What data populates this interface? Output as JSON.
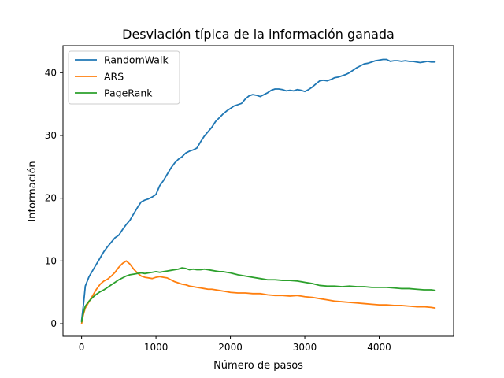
{
  "chart_data": {
    "type": "line",
    "title": "Desviación típica de la información ganada",
    "xlabel": "Número de pasos",
    "ylabel": "Información",
    "xlim": [
      -250,
      5000
    ],
    "ylim": [
      -2,
      44.3
    ],
    "xticks": [
      0,
      1000,
      2000,
      3000,
      4000
    ],
    "yticks": [
      0,
      10,
      20,
      30,
      40
    ],
    "grid": false,
    "legend_position": "top-left",
    "series": [
      {
        "name": "RandomWalk",
        "color": "#1f77b4",
        "points": [
          [
            0,
            0.5
          ],
          [
            25,
            3
          ],
          [
            50,
            6
          ],
          [
            100,
            7.5
          ],
          [
            150,
            8.5
          ],
          [
            200,
            9.5
          ],
          [
            250,
            10.5
          ],
          [
            300,
            11.5
          ],
          [
            350,
            12.3
          ],
          [
            400,
            13
          ],
          [
            450,
            13.7
          ],
          [
            500,
            14.1
          ],
          [
            550,
            15
          ],
          [
            600,
            15.8
          ],
          [
            650,
            16.5
          ],
          [
            700,
            17.5
          ],
          [
            750,
            18.5
          ],
          [
            800,
            19.4
          ],
          [
            850,
            19.7
          ],
          [
            900,
            19.9
          ],
          [
            950,
            20.2
          ],
          [
            1000,
            20.6
          ],
          [
            1050,
            22
          ],
          [
            1100,
            22.8
          ],
          [
            1150,
            23.8
          ],
          [
            1200,
            24.8
          ],
          [
            1250,
            25.6
          ],
          [
            1300,
            26.2
          ],
          [
            1350,
            26.6
          ],
          [
            1400,
            27.2
          ],
          [
            1450,
            27.5
          ],
          [
            1500,
            27.7
          ],
          [
            1550,
            28
          ],
          [
            1600,
            29
          ],
          [
            1650,
            29.9
          ],
          [
            1700,
            30.6
          ],
          [
            1750,
            31.3
          ],
          [
            1800,
            32.2
          ],
          [
            1850,
            32.8
          ],
          [
            1900,
            33.4
          ],
          [
            1950,
            33.9
          ],
          [
            2000,
            34.3
          ],
          [
            2050,
            34.7
          ],
          [
            2100,
            34.9
          ],
          [
            2150,
            35.1
          ],
          [
            2200,
            35.8
          ],
          [
            2250,
            36.3
          ],
          [
            2300,
            36.5
          ],
          [
            2350,
            36.4
          ],
          [
            2400,
            36.2
          ],
          [
            2450,
            36.5
          ],
          [
            2500,
            36.8
          ],
          [
            2550,
            37.2
          ],
          [
            2600,
            37.4
          ],
          [
            2650,
            37.4
          ],
          [
            2700,
            37.3
          ],
          [
            2750,
            37.1
          ],
          [
            2800,
            37.2
          ],
          [
            2850,
            37.1
          ],
          [
            2900,
            37.3
          ],
          [
            2950,
            37.2
          ],
          [
            3000,
            37.0
          ],
          [
            3050,
            37.3
          ],
          [
            3100,
            37.7
          ],
          [
            3150,
            38.2
          ],
          [
            3200,
            38.7
          ],
          [
            3250,
            38.8
          ],
          [
            3300,
            38.7
          ],
          [
            3350,
            38.9
          ],
          [
            3400,
            39.2
          ],
          [
            3450,
            39.3
          ],
          [
            3500,
            39.5
          ],
          [
            3550,
            39.7
          ],
          [
            3600,
            40.0
          ],
          [
            3650,
            40.4
          ],
          [
            3700,
            40.8
          ],
          [
            3750,
            41.1
          ],
          [
            3800,
            41.4
          ],
          [
            3850,
            41.5
          ],
          [
            3900,
            41.7
          ],
          [
            3950,
            41.9
          ],
          [
            4000,
            42.0
          ],
          [
            4050,
            42.1
          ],
          [
            4100,
            42.1
          ],
          [
            4150,
            41.8
          ],
          [
            4200,
            41.9
          ],
          [
            4250,
            41.9
          ],
          [
            4300,
            41.8
          ],
          [
            4350,
            41.9
          ],
          [
            4400,
            41.8
          ],
          [
            4450,
            41.8
          ],
          [
            4500,
            41.7
          ],
          [
            4550,
            41.6
          ],
          [
            4600,
            41.7
          ],
          [
            4650,
            41.8
          ],
          [
            4700,
            41.7
          ],
          [
            4750,
            41.7
          ]
        ]
      },
      {
        "name": "ARS",
        "color": "#ff7f0e",
        "points": [
          [
            0,
            0
          ],
          [
            25,
            1.5
          ],
          [
            50,
            2.5
          ],
          [
            100,
            3.5
          ],
          [
            150,
            4.5
          ],
          [
            200,
            5.5
          ],
          [
            250,
            6.3
          ],
          [
            300,
            6.8
          ],
          [
            350,
            7.1
          ],
          [
            400,
            7.6
          ],
          [
            450,
            8.2
          ],
          [
            500,
            9.0
          ],
          [
            550,
            9.6
          ],
          [
            600,
            10.0
          ],
          [
            650,
            9.5
          ],
          [
            700,
            8.7
          ],
          [
            750,
            8.1
          ],
          [
            800,
            7.6
          ],
          [
            850,
            7.4
          ],
          [
            900,
            7.3
          ],
          [
            950,
            7.2
          ],
          [
            1000,
            7.4
          ],
          [
            1050,
            7.5
          ],
          [
            1100,
            7.4
          ],
          [
            1150,
            7.3
          ],
          [
            1200,
            7.0
          ],
          [
            1250,
            6.7
          ],
          [
            1300,
            6.5
          ],
          [
            1350,
            6.3
          ],
          [
            1400,
            6.2
          ],
          [
            1450,
            6.0
          ],
          [
            1500,
            5.9
          ],
          [
            1550,
            5.8
          ],
          [
            1600,
            5.7
          ],
          [
            1650,
            5.6
          ],
          [
            1700,
            5.5
          ],
          [
            1750,
            5.5
          ],
          [
            1800,
            5.4
          ],
          [
            1850,
            5.3
          ],
          [
            1900,
            5.2
          ],
          [
            1950,
            5.1
          ],
          [
            2000,
            5.0
          ],
          [
            2100,
            4.9
          ],
          [
            2200,
            4.9
          ],
          [
            2300,
            4.8
          ],
          [
            2400,
            4.8
          ],
          [
            2500,
            4.6
          ],
          [
            2600,
            4.5
          ],
          [
            2700,
            4.5
          ],
          [
            2800,
            4.4
          ],
          [
            2900,
            4.5
          ],
          [
            3000,
            4.3
          ],
          [
            3100,
            4.2
          ],
          [
            3200,
            4.0
          ],
          [
            3300,
            3.8
          ],
          [
            3400,
            3.6
          ],
          [
            3500,
            3.5
          ],
          [
            3600,
            3.4
          ],
          [
            3700,
            3.3
          ],
          [
            3800,
            3.2
          ],
          [
            3900,
            3.1
          ],
          [
            4000,
            3.0
          ],
          [
            4100,
            3.0
          ],
          [
            4200,
            2.9
          ],
          [
            4300,
            2.9
          ],
          [
            4400,
            2.8
          ],
          [
            4500,
            2.7
          ],
          [
            4600,
            2.7
          ],
          [
            4700,
            2.6
          ],
          [
            4750,
            2.5
          ]
        ]
      },
      {
        "name": "PageRank",
        "color": "#2ca02c",
        "points": [
          [
            0,
            0.3
          ],
          [
            25,
            1.8
          ],
          [
            50,
            2.8
          ],
          [
            100,
            3.6
          ],
          [
            150,
            4.2
          ],
          [
            200,
            4.7
          ],
          [
            250,
            5.1
          ],
          [
            300,
            5.4
          ],
          [
            350,
            5.8
          ],
          [
            400,
            6.2
          ],
          [
            450,
            6.6
          ],
          [
            500,
            7.0
          ],
          [
            550,
            7.3
          ],
          [
            600,
            7.6
          ],
          [
            650,
            7.8
          ],
          [
            700,
            7.9
          ],
          [
            750,
            8.0
          ],
          [
            800,
            8.1
          ],
          [
            850,
            8.0
          ],
          [
            900,
            8.1
          ],
          [
            950,
            8.2
          ],
          [
            1000,
            8.3
          ],
          [
            1050,
            8.2
          ],
          [
            1100,
            8.3
          ],
          [
            1150,
            8.4
          ],
          [
            1200,
            8.5
          ],
          [
            1250,
            8.6
          ],
          [
            1300,
            8.7
          ],
          [
            1350,
            8.9
          ],
          [
            1400,
            8.8
          ],
          [
            1450,
            8.6
          ],
          [
            1500,
            8.7
          ],
          [
            1550,
            8.6
          ],
          [
            1600,
            8.6
          ],
          [
            1650,
            8.7
          ],
          [
            1700,
            8.6
          ],
          [
            1750,
            8.5
          ],
          [
            1800,
            8.4
          ],
          [
            1850,
            8.3
          ],
          [
            1900,
            8.3
          ],
          [
            1950,
            8.2
          ],
          [
            2000,
            8.1
          ],
          [
            2100,
            7.8
          ],
          [
            2200,
            7.6
          ],
          [
            2300,
            7.4
          ],
          [
            2400,
            7.2
          ],
          [
            2500,
            7.0
          ],
          [
            2600,
            7.0
          ],
          [
            2700,
            6.9
          ],
          [
            2800,
            6.9
          ],
          [
            2900,
            6.8
          ],
          [
            3000,
            6.6
          ],
          [
            3100,
            6.4
          ],
          [
            3200,
            6.1
          ],
          [
            3300,
            6.0
          ],
          [
            3400,
            6.0
          ],
          [
            3500,
            5.9
          ],
          [
            3600,
            6.0
          ],
          [
            3700,
            5.9
          ],
          [
            3800,
            5.9
          ],
          [
            3900,
            5.8
          ],
          [
            4000,
            5.8
          ],
          [
            4100,
            5.8
          ],
          [
            4200,
            5.7
          ],
          [
            4300,
            5.6
          ],
          [
            4400,
            5.6
          ],
          [
            4500,
            5.5
          ],
          [
            4600,
            5.4
          ],
          [
            4700,
            5.4
          ],
          [
            4750,
            5.3
          ]
        ]
      }
    ]
  }
}
